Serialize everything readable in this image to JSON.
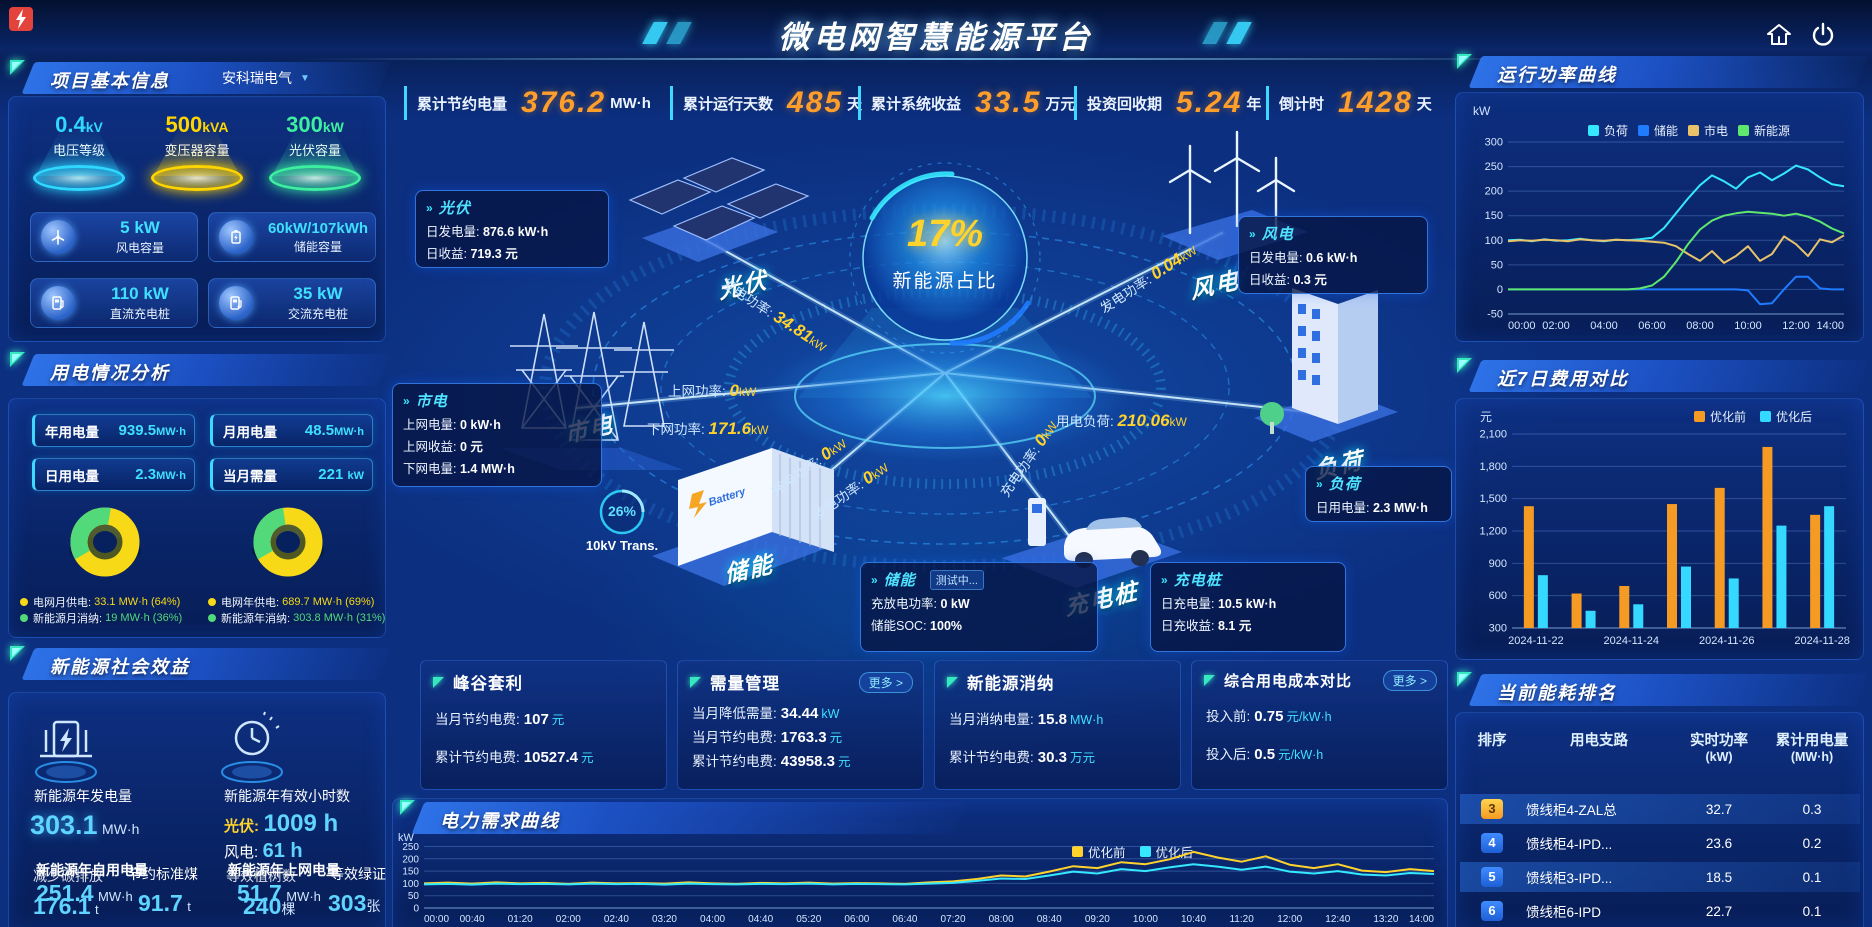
{
  "header": {
    "title": "微电网智慧能源平台"
  },
  "stats_bar": [
    {
      "label": "累计节约电量",
      "value": "376.2",
      "unit": "MW·h"
    },
    {
      "label": "累计运行天数",
      "value": "485",
      "unit": "天"
    },
    {
      "label": "累计系统收益",
      "value": "33.5",
      "unit": "万元"
    },
    {
      "label": "投资回收期",
      "value": "5.24",
      "unit": "年"
    },
    {
      "label": "倒计时",
      "value": "1428",
      "unit": "天"
    }
  ],
  "project": {
    "title": "项目基本信息",
    "company": "安科瑞电气",
    "pedestals": [
      {
        "value": "0.4",
        "unit": "kV",
        "label": "电压等级",
        "color": "#2fd8ff"
      },
      {
        "value": "500",
        "unit": "kVA",
        "label": "变压器容量",
        "color": "#ffd500"
      },
      {
        "value": "300",
        "unit": "kW",
        "label": "光伏容量",
        "color": "#3df0a0"
      }
    ],
    "cards": [
      {
        "value": "5 kW",
        "label": "风电容量"
      },
      {
        "value": "60kW/107kWh",
        "label": "储能容量"
      },
      {
        "value": "110 kW",
        "label": "直流充电桩"
      },
      {
        "value": "35 kW",
        "label": "交流充电桩"
      }
    ]
  },
  "usage": {
    "title": "用电情况分析",
    "stats": [
      {
        "label": "年用电量",
        "value": "939.5",
        "unit": "MW·h"
      },
      {
        "label": "月用电量",
        "value": "48.5",
        "unit": "MW·h"
      },
      {
        "label": "日用电量",
        "value": "2.3",
        "unit": "MW·h"
      },
      {
        "label": "当月需量",
        "value": "221",
        "unit": "kW"
      }
    ],
    "month_legend": [
      {
        "label": "电网月供电:",
        "value": "33.1 MW·h (64%)",
        "color": "#f7d917"
      },
      {
        "label": "新能源月消纳:",
        "value": "19 MW·h (36%)",
        "color": "#52d97a"
      }
    ],
    "year_legend": [
      {
        "label": "电网年供电:",
        "value": "689.7 MW·h (69%)",
        "color": "#f7d917"
      },
      {
        "label": "新能源年消纳:",
        "value": "303.8 MW·h (31%)",
        "color": "#52d97a"
      }
    ]
  },
  "benefit": {
    "title": "新能源社会效益",
    "gen_label": "新能源年发电量",
    "gen_value": "303.1",
    "gen_unit": "MW·h",
    "hours_label": "新能源年有效小时数",
    "pv_label": "光伏:",
    "pv_value": "1009 h",
    "wind_label": "风电:",
    "wind_value": "61 h",
    "self_label": "新能源年自用电量",
    "self_value": "251.4",
    "self_unit": "MW·h",
    "carbon_label": "减少碳排放",
    "carbon_value": "176.1",
    "carbon_unit": "t",
    "coal_label": "节约标准煤",
    "coal_value": "91.7",
    "coal_unit": "t",
    "export_label": "新能源年上网电量",
    "export_value": "51.7",
    "export_unit": "MW·h",
    "tree_label": "等效植树数",
    "tree_value": "240",
    "tree_unit": "棵",
    "cert_label": "等效绿证",
    "cert_value": "303",
    "cert_unit": "张"
  },
  "diagram": {
    "hub_percent": "17%",
    "hub_label": "新能源占比",
    "transformer_percent": "26%",
    "transformer_label": "10kV Trans.",
    "battery_text": "Battery",
    "nodes": {
      "pv": "光伏",
      "wind": "风电",
      "grid": "市电",
      "storage": "储能",
      "charger": "充电桩",
      "load": "负荷"
    },
    "flows": {
      "pv_gen": {
        "label": "发电功率:",
        "value": "34.81",
        "unit": "kW"
      },
      "grid_up": {
        "label": "上网功率:",
        "value": "0",
        "unit": "kW"
      },
      "grid_down": {
        "label": "下网功率:",
        "value": "171.6",
        "unit": "kW"
      },
      "wind_gen": {
        "label": "发电功率:",
        "value": "0.04",
        "unit": "kW"
      },
      "load_power": {
        "label": "用电负荷:",
        "value": "210.06",
        "unit": "kW"
      },
      "storage_charge": {
        "label": "充电功率:",
        "value": "0",
        "unit": "kW"
      },
      "storage_discharge": {
        "label": "放电功率:",
        "value": "0",
        "unit": "kW"
      },
      "charger_charge": {
        "label": "充电功率:",
        "value": "0",
        "unit": "kW"
      }
    },
    "boxes": {
      "pv": {
        "title": "光伏",
        "rows": [
          {
            "label": "日发电量:",
            "value": "876.6 kW·h"
          },
          {
            "label": "日收益:",
            "value": "719.3 元"
          }
        ]
      },
      "wind": {
        "title": "风电",
        "rows": [
          {
            "label": "日发电量:",
            "value": "0.6 kW·h"
          },
          {
            "label": "日收益:",
            "value": "0.3 元"
          }
        ]
      },
      "grid": {
        "title": "市电",
        "rows": [
          {
            "label": "上网电量:",
            "value": "0 kW·h"
          },
          {
            "label": "上网收益:",
            "value": "0 元"
          },
          {
            "label": "下网电量:",
            "value": "1.4 MW·h"
          }
        ]
      },
      "load": {
        "title": "负荷",
        "rows": [
          {
            "label": "日用电量:",
            "value": "2.3 MW·h"
          }
        ]
      },
      "storage": {
        "title": "储能",
        "badge": "测试中...",
        "rows": [
          {
            "label": "充放电功率:",
            "value": "0 kW"
          },
          {
            "label": "储能SOC:",
            "value": "100%"
          }
        ]
      },
      "charger": {
        "title": "充电桩",
        "rows": [
          {
            "label": "日充电量:",
            "value": "10.5 kW·h"
          },
          {
            "label": "日充收益:",
            "value": "8.1 元"
          }
        ]
      }
    }
  },
  "metrics": [
    {
      "title": "峰谷套利",
      "rows": [
        {
          "label": "当月节约电费:",
          "value": "107",
          "unit": "元"
        },
        {
          "label": "累计节约电费:",
          "value": "10527.4",
          "unit": "元"
        }
      ]
    },
    {
      "title": "需量管理",
      "more": "更多 >",
      "rows": [
        {
          "label": "当月降低需量:",
          "value": "34.44",
          "unit": "kW"
        },
        {
          "label": "当月节约电费:",
          "value": "1763.3",
          "unit": "元"
        },
        {
          "label": "累计节约电费:",
          "value": "43958.3",
          "unit": "元"
        }
      ]
    },
    {
      "title": "新能源消纳",
      "rows": [
        {
          "label": "当月消纳电量:",
          "value": "15.8",
          "unit": "MW·h"
        },
        {
          "label": "累计节约电费:",
          "value": "30.3",
          "unit": "万元"
        }
      ]
    },
    {
      "title": "综合用电成本对比",
      "more": "更多 >",
      "rows": [
        {
          "label": "投入前:",
          "value": "0.75",
          "unit": "元/kW·h"
        },
        {
          "label": "投入后:",
          "value": "0.5",
          "unit": "元/kW·h"
        }
      ]
    }
  ],
  "power_panel": {
    "title": "运行功率曲线"
  },
  "cost_panel": {
    "title": "近7日费用对比"
  },
  "demand_panel": {
    "title": "电力需求曲线"
  },
  "rank": {
    "title": "当前能耗排名",
    "headers": [
      {
        "l1": "排序",
        "l2": ""
      },
      {
        "l1": "用电支路",
        "l2": ""
      },
      {
        "l1": "实时功率",
        "l2": "(kW)"
      },
      {
        "l1": "累计用电量",
        "l2": "(MW·h)"
      }
    ],
    "rows": [
      {
        "order": "3",
        "branch": "馈线柜4-ZAL总",
        "power": "32.7",
        "energy": "0.3"
      },
      {
        "order": "4",
        "branch": "馈线柜4-IPD...",
        "power": "23.6",
        "energy": "0.2"
      },
      {
        "order": "5",
        "branch": "馈线柜3-IPD...",
        "power": "18.5",
        "energy": "0.1"
      },
      {
        "order": "6",
        "branch": "馈线柜6-IPD",
        "power": "22.7",
        "energy": "0.1"
      }
    ]
  },
  "chart_data": [
    {
      "id": "power_curve",
      "type": "line",
      "title": "运行功率曲线",
      "ylabel": "kW",
      "ylim": [
        -50,
        300
      ],
      "yticks": [
        300,
        250,
        200,
        150,
        100,
        50,
        0,
        -50
      ],
      "xlabels": [
        "00:00",
        "02:00",
        "04:00",
        "06:00",
        "08:00",
        "10:00",
        "12:00",
        "14:00"
      ],
      "legend_position": "top",
      "series": [
        {
          "name": "负荷",
          "color": "#35e8ff",
          "values": [
            100,
            101,
            98,
            102,
            99,
            100,
            103,
            100,
            98,
            101,
            100,
            102,
            105,
            125,
            155,
            185,
            212,
            232,
            220,
            205,
            228,
            238,
            222,
            236,
            252,
            244,
            228,
            214,
            210
          ]
        },
        {
          "name": "储能",
          "color": "#1f7bff",
          "values": [
            0,
            0,
            0,
            0,
            0,
            0,
            0,
            0,
            0,
            0,
            0,
            0,
            0,
            0,
            0,
            0,
            0,
            0,
            0,
            0,
            -2,
            -30,
            -28,
            0,
            26,
            26,
            2,
            0,
            0
          ]
        },
        {
          "name": "市电",
          "color": "#e8c36a",
          "values": [
            98,
            100,
            99,
            101,
            100,
            98,
            102,
            100,
            99,
            101,
            100,
            99,
            97,
            95,
            88,
            72,
            58,
            78,
            54,
            68,
            88,
            58,
            72,
            108,
            92,
            68,
            102,
            96,
            110
          ]
        },
        {
          "name": "新能源",
          "color": "#5ee86e",
          "values": [
            0,
            0,
            0,
            0,
            0,
            0,
            0,
            0,
            0,
            0,
            0,
            2,
            8,
            26,
            56,
            92,
            122,
            140,
            150,
            155,
            158,
            156,
            154,
            150,
            154,
            148,
            138,
            124,
            114
          ]
        }
      ]
    },
    {
      "id": "cost_compare",
      "type": "bar",
      "title": "近7日费用对比",
      "ylabel": "元",
      "ylim": [
        300,
        2100
      ],
      "yticks": [
        2100,
        1800,
        1500,
        1200,
        900,
        600,
        300
      ],
      "ytick_labels": [
        "2,100",
        "1,800",
        "1,500",
        "1,200",
        "900",
        "600",
        "300"
      ],
      "categories": [
        "2024-11-22",
        "2024-11-23",
        "2024-11-24",
        "2024-11-25",
        "2024-11-26",
        "2024-11-27",
        "2024-11-28"
      ],
      "xtick_shown": [
        "2024-11-22",
        "2024-11-24",
        "2024-11-26",
        "2024-11-28"
      ],
      "legend_position": "top-right",
      "series": [
        {
          "name": "优化前",
          "color": "#f59a23",
          "values": [
            1430,
            620,
            690,
            1450,
            1600,
            1980,
            1350
          ]
        },
        {
          "name": "优化后",
          "color": "#35d8ff",
          "values": [
            790,
            460,
            520,
            870,
            760,
            1250,
            1430
          ]
        }
      ]
    },
    {
      "id": "demand_curve",
      "type": "line",
      "title": "电力需求曲线",
      "ylabel": "kW",
      "ylim": [
        0,
        260
      ],
      "yticks": [
        250,
        200,
        150,
        100,
        50,
        0
      ],
      "xlabels": [
        "00:00",
        "00:40",
        "01:20",
        "02:00",
        "02:40",
        "03:20",
        "04:00",
        "04:40",
        "05:20",
        "06:00",
        "06:40",
        "07:20",
        "08:00",
        "08:40",
        "09:20",
        "10:00",
        "10:40",
        "11:20",
        "12:00",
        "12:40",
        "13:20",
        "14:00"
      ],
      "legend_position": "top-right",
      "series": [
        {
          "name": "优化前",
          "color": "#ffd32b",
          "values": [
            100,
            103,
            99,
            104,
            100,
            102,
            98,
            103,
            100,
            101,
            99,
            104,
            100,
            98,
            102,
            100,
            103,
            99,
            101,
            100,
            98,
            104,
            108,
            118,
            132,
            128,
            148,
            170,
            162,
            186,
            178,
            198,
            228,
            205,
            188,
            210,
            176,
            162,
            178,
            152,
            146,
            158,
            150
          ]
        },
        {
          "name": "优化后",
          "color": "#35e8ff",
          "values": [
            96,
            98,
            95,
            99,
            97,
            98,
            96,
            99,
            97,
            98,
            95,
            99,
            97,
            96,
            98,
            97,
            99,
            96,
            98,
            97,
            96,
            99,
            102,
            110,
            120,
            118,
            132,
            148,
            140,
            158,
            150,
            165,
            178,
            168,
            155,
            168,
            148,
            140,
            150,
            136,
            132,
            142,
            138
          ]
        }
      ]
    },
    {
      "id": "usage_donuts",
      "type": "pie",
      "donuts": [
        {
          "name": "月",
          "values": [
            64,
            36
          ]
        },
        {
          "name": "年",
          "values": [
            69,
            31
          ]
        }
      ],
      "colors": [
        "#f7d917",
        "#52d97a"
      ]
    }
  ]
}
